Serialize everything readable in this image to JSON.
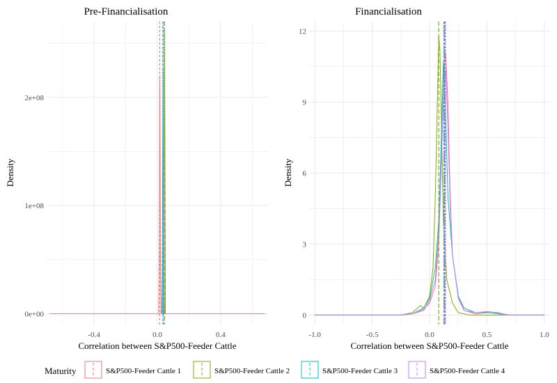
{
  "chart_data": [
    {
      "type": "line",
      "title": "Pre-Financialisation",
      "xlabel": "Correlation between S&P500-Feeder Cattle",
      "ylabel": "Density",
      "xlim": [
        -0.7,
        0.7
      ],
      "ylim": [
        -10000000,
        270000000
      ],
      "x_ticks": [
        -0.4,
        0.0,
        0.4
      ],
      "x_tick_labels": [
        "-0.4",
        "0.0",
        "0.4"
      ],
      "y_ticks": [
        0,
        100000000,
        200000000
      ],
      "y_tick_labels": [
        "0e+00",
        "1e+08",
        "2e+08"
      ],
      "grid": true,
      "series": [
        {
          "name": "S&P500-Feeder Cattle 1",
          "mean": 0.015,
          "points": [
            [
              -0.68,
              0
            ],
            [
              0.008,
              0
            ],
            [
              0.012,
              60000000
            ],
            [
              0.016,
              220000000
            ],
            [
              0.02,
              40000000
            ],
            [
              0.023,
              0
            ],
            [
              0.68,
              0
            ]
          ]
        },
        {
          "name": "S&P500-Feeder Cattle 2",
          "mean": 0.045,
          "points": [
            [
              -0.68,
              0
            ],
            [
              0.038,
              0
            ],
            [
              0.042,
              80000000
            ],
            [
              0.045,
              262000000
            ],
            [
              0.048,
              160000000
            ],
            [
              0.051,
              0
            ],
            [
              0.68,
              0
            ]
          ]
        },
        {
          "name": "S&P500-Feeder Cattle 3",
          "mean": 0.035,
          "points": [
            [
              -0.68,
              0
            ],
            [
              0.028,
              0
            ],
            [
              0.032,
              70000000
            ],
            [
              0.036,
              225000000
            ],
            [
              0.039,
              30000000
            ],
            [
              0.042,
              0
            ],
            [
              0.68,
              0
            ]
          ]
        },
        {
          "name": "S&P500-Feeder Cattle 4",
          "mean": 0.04,
          "points": [
            [
              -0.68,
              0
            ],
            [
              0.033,
              0
            ],
            [
              0.037,
              50000000
            ],
            [
              0.04,
              150000000
            ],
            [
              0.044,
              20000000
            ],
            [
              0.047,
              0
            ],
            [
              0.68,
              0
            ]
          ]
        }
      ]
    },
    {
      "type": "line",
      "title": "Financialisation",
      "xlabel": "Correlation between S&P500-Feeder Cattle",
      "ylabel": "Density",
      "xlim": [
        -1.05,
        1.05
      ],
      "ylim": [
        -0.4,
        12.4
      ],
      "x_ticks": [
        -1.0,
        -0.5,
        0.0,
        0.5,
        1.0
      ],
      "x_tick_labels": [
        "-1.0",
        "-0.5",
        "0.0",
        "0.5",
        "1.0"
      ],
      "y_ticks": [
        0,
        3,
        6,
        9,
        12
      ],
      "y_tick_labels": [
        "0",
        "3",
        "6",
        "9",
        "12"
      ],
      "grid": true,
      "series": [
        {
          "name": "S&P500-Feeder Cattle 1",
          "mean": 0.13,
          "points": [
            [
              -1,
              0
            ],
            [
              -0.25,
              0
            ],
            [
              -0.15,
              0.05
            ],
            [
              -0.05,
              0.2
            ],
            [
              0.0,
              0.6
            ],
            [
              0.05,
              1.5
            ],
            [
              0.08,
              3.5
            ],
            [
              0.1,
              7
            ],
            [
              0.12,
              10
            ],
            [
              0.14,
              11.1
            ],
            [
              0.16,
              9
            ],
            [
              0.18,
              5
            ],
            [
              0.2,
              2.5
            ],
            [
              0.25,
              0.8
            ],
            [
              0.3,
              0.2
            ],
            [
              0.4,
              0.05
            ],
            [
              0.5,
              0.1
            ],
            [
              0.6,
              0.08
            ],
            [
              0.7,
              0
            ],
            [
              1,
              0
            ]
          ]
        },
        {
          "name": "S&P500-Feeder Cattle 2",
          "mean": 0.08,
          "points": [
            [
              -1,
              0
            ],
            [
              -0.25,
              0
            ],
            [
              -0.15,
              0.1
            ],
            [
              -0.08,
              0.4
            ],
            [
              -0.05,
              0.3
            ],
            [
              0.0,
              0.8
            ],
            [
              0.03,
              2
            ],
            [
              0.05,
              5
            ],
            [
              0.07,
              9.5
            ],
            [
              0.08,
              11.8
            ],
            [
              0.09,
              11.2
            ],
            [
              0.1,
              9
            ],
            [
              0.12,
              4
            ],
            [
              0.15,
              1.5
            ],
            [
              0.2,
              0.5
            ],
            [
              0.25,
              0.1
            ],
            [
              0.35,
              0
            ],
            [
              1,
              0
            ]
          ]
        },
        {
          "name": "S&P500-Feeder Cattle 3",
          "mean": 0.125,
          "points": [
            [
              -1,
              0
            ],
            [
              -0.25,
              0
            ],
            [
              -0.15,
              0.05
            ],
            [
              -0.05,
              0.3
            ],
            [
              0.0,
              0.7
            ],
            [
              0.05,
              2
            ],
            [
              0.08,
              4
            ],
            [
              0.1,
              7
            ],
            [
              0.12,
              10.7
            ],
            [
              0.14,
              8.5
            ],
            [
              0.16,
              5
            ],
            [
              0.2,
              2.5
            ],
            [
              0.25,
              0.8
            ],
            [
              0.3,
              0.3
            ],
            [
              0.4,
              0.1
            ],
            [
              0.5,
              0.12
            ],
            [
              0.6,
              0.05
            ],
            [
              0.7,
              0
            ],
            [
              1,
              0
            ]
          ]
        },
        {
          "name": "S&P500-Feeder Cattle 4",
          "mean": 0.14,
          "points": [
            [
              -1,
              0
            ],
            [
              -0.25,
              0
            ],
            [
              -0.15,
              0.05
            ],
            [
              -0.05,
              0.25
            ],
            [
              0.0,
              0.5
            ],
            [
              0.05,
              1.2
            ],
            [
              0.08,
              3
            ],
            [
              0.1,
              6
            ],
            [
              0.12,
              9
            ],
            [
              0.14,
              10.4
            ],
            [
              0.16,
              8
            ],
            [
              0.18,
              4.5
            ],
            [
              0.2,
              2.5
            ],
            [
              0.25,
              0.7
            ],
            [
              0.3,
              0.2
            ],
            [
              0.4,
              0.1
            ],
            [
              0.5,
              0.15
            ],
            [
              0.6,
              0.1
            ],
            [
              0.68,
              0
            ],
            [
              1,
              0
            ]
          ]
        }
      ]
    }
  ],
  "legend": {
    "title": "Maturity",
    "placement": "bottom",
    "items": [
      {
        "label": "S&P500-Feeder Cattle 1",
        "color": "#F8766D"
      },
      {
        "label": "S&P500-Feeder Cattle 2",
        "color": "#7CAE00"
      },
      {
        "label": "S&P500-Feeder Cattle 3",
        "color": "#00BFC4"
      },
      {
        "label": "S&P500-Feeder Cattle 4",
        "color": "#C77CFF"
      }
    ]
  },
  "colors": {
    "grid": "#ebebeb",
    "mean_line_overlay": "#7B84C9"
  }
}
